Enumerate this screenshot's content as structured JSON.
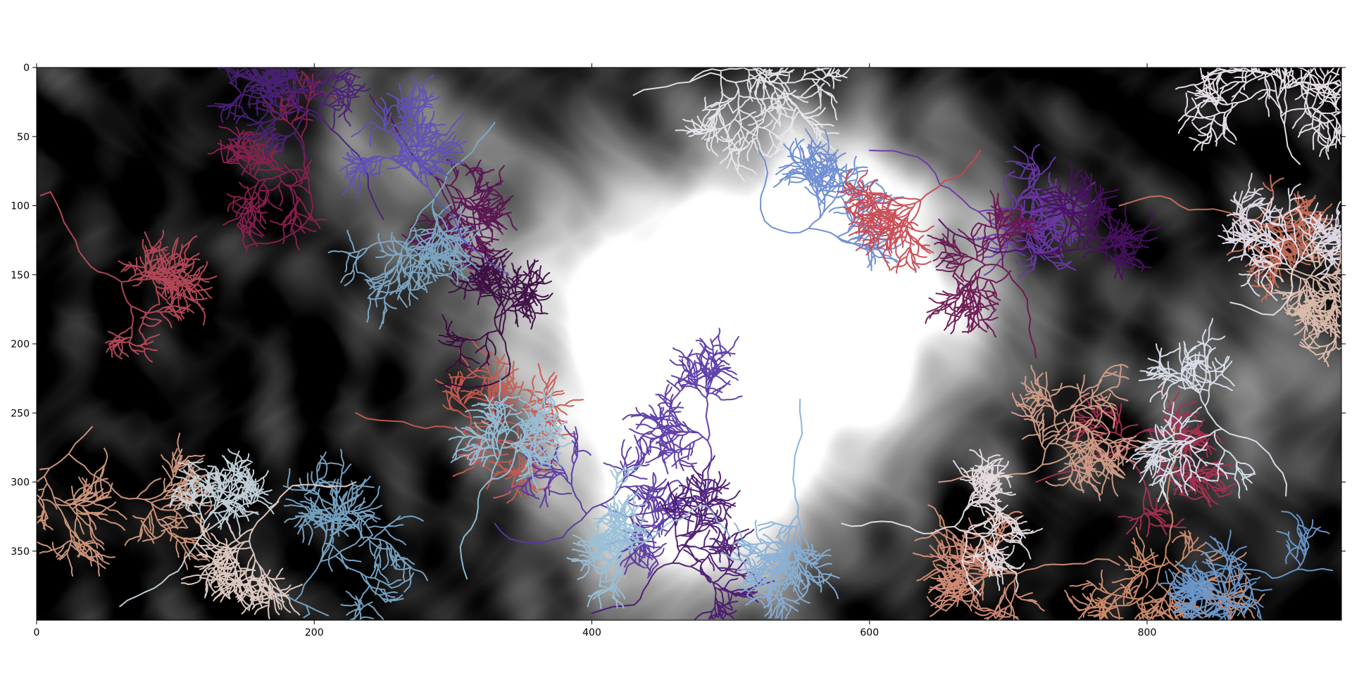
{
  "chart_data": {
    "type": "heatmap",
    "description_of_layers": "grayscale terrain raster with overlaid colored drainage networks",
    "xlim": [
      0,
      940
    ],
    "ylim": [
      400,
      0
    ],
    "x_ticks": [
      0,
      200,
      400,
      600,
      800
    ],
    "y_ticks": [
      0,
      50,
      100,
      150,
      200,
      250,
      300,
      350
    ],
    "x_tick_labels": [
      "0",
      "200",
      "400",
      "600",
      "800"
    ],
    "y_tick_labels": [
      "0",
      "50",
      "100",
      "150",
      "200",
      "250",
      "300",
      "350"
    ],
    "terrain_peaks": [
      {
        "x": 540,
        "y": 180,
        "height": 1.0,
        "spread": 70
      },
      {
        "x": 470,
        "y": 260,
        "height": 0.95,
        "spread": 80
      },
      {
        "x": 400,
        "y": 150,
        "height": 0.7,
        "spread": 70
      },
      {
        "x": 620,
        "y": 170,
        "height": 0.75,
        "spread": 70
      },
      {
        "x": 470,
        "y": 330,
        "height": 0.55,
        "spread": 60
      },
      {
        "x": 260,
        "y": 60,
        "height": 0.45,
        "spread": 50
      },
      {
        "x": 880,
        "y": 230,
        "height": 0.35,
        "spread": 60
      },
      {
        "x": 560,
        "y": 90,
        "height": 0.5,
        "spread": 60
      }
    ],
    "drainage_networks": [
      {
        "outlet": [
          10,
          90
        ],
        "color": "#b84a5a",
        "seed": 11
      },
      {
        "outlet": [
          150,
          130
        ],
        "color": "#8a2050",
        "seed": 12
      },
      {
        "outlet": [
          240,
          20
        ],
        "color": "#5a1050",
        "seed": 13
      },
      {
        "outlet": [
          250,
          110
        ],
        "color": "#4a2078",
        "seed": 14
      },
      {
        "outlet": [
          230,
          250
        ],
        "color": "#c85a50",
        "seed": 15
      },
      {
        "outlet": [
          40,
          260
        ],
        "color": "#d49a80",
        "seed": 16
      },
      {
        "outlet": [
          60,
          390
        ],
        "color": "#c8d8e0",
        "seed": 17
      },
      {
        "outlet": [
          170,
          380
        ],
        "color": "#7aa8c8",
        "seed": 18
      },
      {
        "outlet": [
          230,
          300
        ],
        "color": "#e6d2c8",
        "seed": 19
      },
      {
        "outlet": [
          290,
          230
        ],
        "color": "#3a0a40",
        "seed": 20
      },
      {
        "outlet": [
          330,
          330
        ],
        "color": "#5a38a0",
        "seed": 21
      },
      {
        "outlet": [
          310,
          370
        ],
        "color": "#98c0d8",
        "seed": 22
      },
      {
        "outlet": [
          400,
          395
        ],
        "color": "#4a1870",
        "seed": 23
      },
      {
        "outlet": [
          330,
          40
        ],
        "color": "#80aac8",
        "seed": 24
      },
      {
        "outlet": [
          430,
          20
        ],
        "color": "#e8e8ee",
        "seed": 25
      },
      {
        "outlet": [
          520,
          60
        ],
        "color": "#6a8ad0",
        "seed": 26
      },
      {
        "outlet": [
          340,
          150
        ],
        "color": "#6050b8",
        "seed": 27
      },
      {
        "outlet": [
          600,
          60
        ],
        "color": "#6a38a8",
        "seed": 28
      },
      {
        "outlet": [
          650,
          110
        ],
        "color": "#481060",
        "seed": 29
      },
      {
        "outlet": [
          720,
          210
        ],
        "color": "#6a1550",
        "seed": 30
      },
      {
        "outlet": [
          720,
          300
        ],
        "color": "#a83050",
        "seed": 31
      },
      {
        "outlet": [
          680,
          60
        ],
        "color": "#c84850",
        "seed": 32
      },
      {
        "outlet": [
          780,
          100
        ],
        "color": "#c8705a",
        "seed": 33
      },
      {
        "outlet": [
          860,
          120
        ],
        "color": "#e0c0b0",
        "seed": 34
      },
      {
        "outlet": [
          910,
          70
        ],
        "color": "#f0e8f0",
        "seed": 35
      },
      {
        "outlet": [
          860,
          170
        ],
        "color": "#e8e0ec",
        "seed": 36
      },
      {
        "outlet": [
          820,
          260
        ],
        "color": "#d49070",
        "seed": 37
      },
      {
        "outlet": [
          900,
          310
        ],
        "color": "#dce4ee",
        "seed": 38
      },
      {
        "outlet": [
          860,
          360
        ],
        "color": "#6a9ad0",
        "seed": 39
      },
      {
        "outlet": [
          780,
          360
        ],
        "color": "#d8907a",
        "seed": 40
      },
      {
        "outlet": [
          650,
          300
        ],
        "color": "#d4a08a",
        "seed": 41
      },
      {
        "outlet": [
          580,
          330
        ],
        "color": "#eae0e4",
        "seed": 42
      },
      {
        "outlet": [
          500,
          340
        ],
        "color": "#98c0d8",
        "seed": 43
      },
      {
        "outlet": [
          440,
          340
        ],
        "color": "#5a38a8",
        "seed": 44
      },
      {
        "outlet": [
          550,
          240
        ],
        "color": "#88b0d8",
        "seed": 45
      }
    ]
  }
}
